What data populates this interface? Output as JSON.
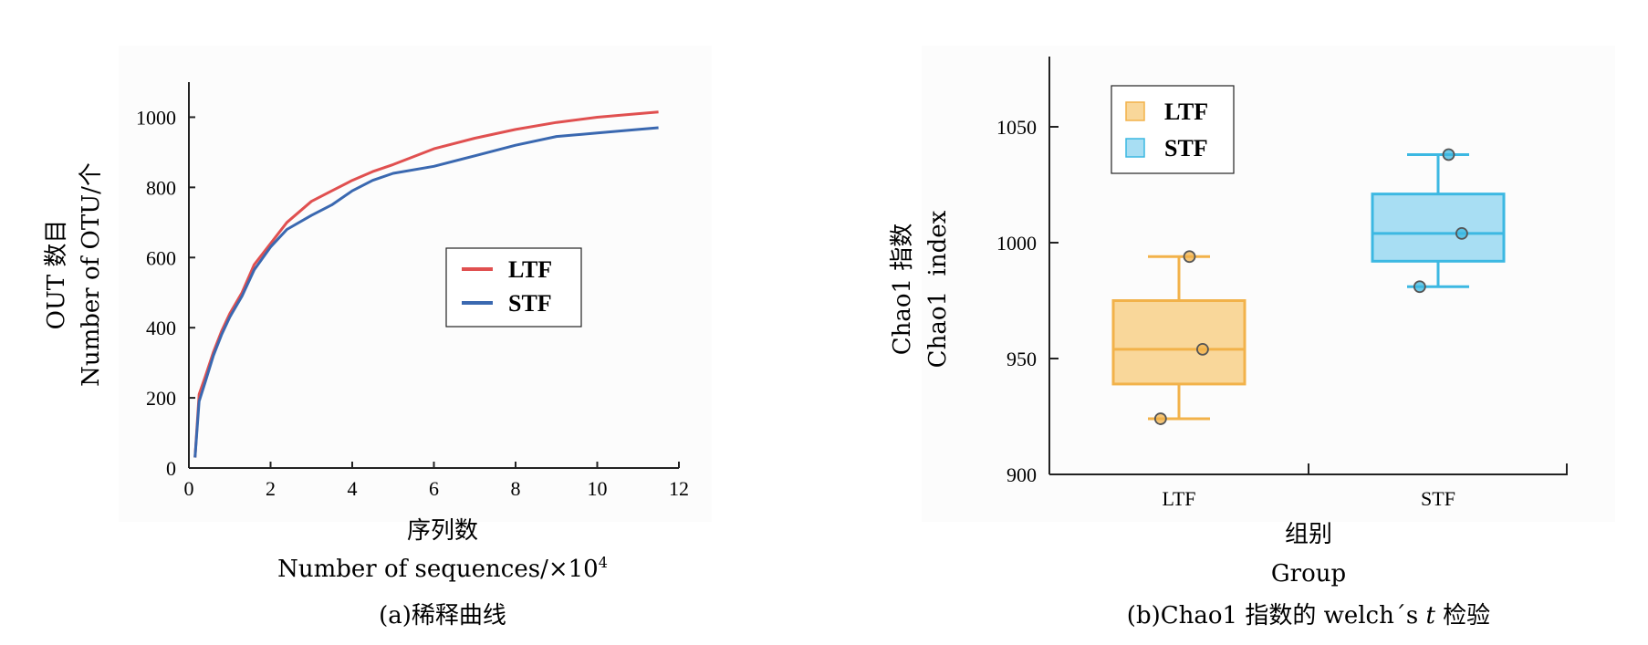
{
  "chart_data": [
    {
      "type": "line",
      "caption": "(a)稀释曲线",
      "xlabel_cn": "序列数",
      "xlabel_en": "Number of sequences/×10",
      "xlabel_sup": "4",
      "ylabel_cn": "OUT 数目",
      "ylabel_en": "Number of OTU/个",
      "xlim": [
        0,
        12
      ],
      "ylim": [
        0,
        1100
      ],
      "xticks": [
        0,
        2,
        4,
        6,
        8,
        10,
        12
      ],
      "yticks": [
        0,
        200,
        400,
        600,
        800,
        1000
      ],
      "legend_position": "center-right",
      "series": [
        {
          "name": "LTF",
          "color": "#e05050",
          "x": [
            0.15,
            0.25,
            0.4,
            0.6,
            0.8,
            1.0,
            1.3,
            1.6,
            2.0,
            2.4,
            3.0,
            3.5,
            4.0,
            4.5,
            5.0,
            6.0,
            7.0,
            8.0,
            9.0,
            10.0,
            11.0,
            11.5
          ],
          "y": [
            30,
            210,
            260,
            330,
            390,
            440,
            500,
            580,
            640,
            700,
            760,
            790,
            820,
            845,
            865,
            910,
            940,
            965,
            985,
            1000,
            1010,
            1015
          ]
        },
        {
          "name": "STF",
          "color": "#3a68b0",
          "x": [
            0.15,
            0.25,
            0.4,
            0.6,
            0.8,
            1.0,
            1.3,
            1.6,
            2.0,
            2.4,
            3.0,
            3.5,
            4.0,
            4.5,
            5.0,
            6.0,
            7.0,
            8.0,
            9.0,
            10.0,
            11.0,
            11.5
          ],
          "y": [
            30,
            190,
            245,
            320,
            380,
            430,
            490,
            565,
            630,
            680,
            720,
            750,
            790,
            820,
            840,
            860,
            890,
            920,
            945,
            955,
            965,
            970
          ]
        }
      ]
    },
    {
      "type": "box",
      "caption_prefix": "(b)Chao1 指数的 welch´s ",
      "caption_italic": "t",
      "caption_suffix": " 检验",
      "xlabel_cn": "组别",
      "xlabel_en": "Group",
      "ylabel_cn": "Chao1 指数",
      "ylabel_en": "Chao1  index",
      "ylim": [
        900,
        1080
      ],
      "yticks": [
        900,
        950,
        1000,
        1050
      ],
      "categories": [
        "LTF",
        "STF"
      ],
      "legend_position": "top-left",
      "series": [
        {
          "name": "LTF",
          "color": "#f2b24a",
          "fill": "#f9d79a",
          "min": 924,
          "q1": 939,
          "median": 954,
          "q3": 975,
          "max": 994,
          "points": [
            994,
            954,
            924
          ]
        },
        {
          "name": "STF",
          "color": "#3cb8e2",
          "fill": "#a8def3",
          "min": 981,
          "q1": 992,
          "median": 1004,
          "q3": 1021,
          "max": 1038,
          "points": [
            1038,
            1004,
            981
          ]
        }
      ]
    }
  ]
}
